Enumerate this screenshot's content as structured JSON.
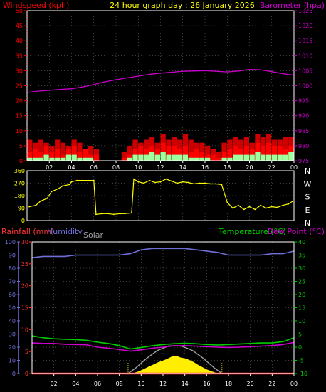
{
  "colors": {
    "windspeed": "#ff0000",
    "gust": "#cc0000",
    "wind_avg": "#9dff9d",
    "barometer": "#cc00cc",
    "direction": "#ffff00",
    "rainfall": "#ff3333",
    "humidity": "#6f6fd8",
    "solar": "#a0a0a0",
    "solar_fill": "#ffee00",
    "temperature": "#00cc00",
    "dew_point": "#cc00cc",
    "text": "#ffff00",
    "grid": "#ffffff",
    "frame": "#ffffff",
    "x_ticks": "#ffffff"
  },
  "chart_data": [
    {
      "type": "line",
      "panel": "wind-barometer",
      "title": "24 hour graph day : 26 January 2026",
      "y_left_label": "Windspeed (kph)",
      "y_right_label": "Barometer (hpa)",
      "x_ticks": [
        "02",
        "04",
        "06",
        "08",
        "10",
        "12",
        "14",
        "16",
        "18",
        "20",
        "22",
        "00"
      ],
      "y_left_ticks": [
        "0",
        "5",
        "10",
        "15",
        "20",
        "25",
        "30",
        "35",
        "40",
        "45",
        "50"
      ],
      "y_right_ticks": [
        "975",
        "980",
        "985",
        "990",
        "995",
        "1000",
        "1005",
        "1010",
        "1015",
        "1020",
        "1025"
      ],
      "y_left_lim": [
        0,
        50
      ],
      "y_right_lim": [
        975,
        1025
      ],
      "grid": true,
      "series": [
        {
          "key": "barometer",
          "axis": "right",
          "x": [
            0,
            1,
            2,
            3,
            4,
            5,
            6,
            7,
            8,
            9,
            10,
            11,
            12,
            13,
            14,
            15,
            16,
            17,
            18,
            19,
            20,
            21,
            22,
            23,
            24
          ],
          "y": [
            997.8,
            998.2,
            998.5,
            998.8,
            999.0,
            999.6,
            1000.4,
            1001.3,
            1002.0,
            1002.6,
            1003.2,
            1003.8,
            1004.2,
            1004.5,
            1004.8,
            1004.9,
            1005.0,
            1004.8,
            1004.6,
            1004.9,
            1005.4,
            1005.3,
            1004.7,
            1004.0,
            1003.5
          ]
        },
        {
          "key": "windspeed",
          "axis": "left",
          "x": [
            0.5,
            1.0,
            1.5,
            2.0,
            2.5,
            3.0,
            3.5,
            4.0,
            4.5,
            5.0,
            5.5,
            6.0,
            6.5,
            7.0,
            7.5,
            8.0,
            8.5,
            9.0,
            9.5,
            10.0,
            10.5,
            11.0,
            11.5,
            12.0,
            12.5,
            13.0,
            13.5,
            14.0,
            14.5,
            15.0,
            15.5,
            16.0,
            16.5,
            17.0,
            17.5,
            18.0,
            18.5,
            19.0,
            19.5,
            20.0,
            20.5,
            21.0,
            21.5,
            22.0,
            22.5,
            23.0,
            23.5,
            24.0
          ],
          "y": [
            3,
            4,
            3,
            5,
            3,
            4,
            2,
            4,
            5,
            3,
            4,
            2,
            2,
            0,
            0,
            0,
            0,
            1,
            2,
            4,
            5,
            4,
            5,
            4,
            6,
            5,
            5,
            4,
            5,
            3,
            4,
            3,
            2,
            2,
            1,
            3,
            4,
            5,
            4,
            5,
            4,
            6,
            5,
            6,
            5,
            5,
            4,
            5
          ]
        },
        {
          "key": "gust",
          "axis": "left",
          "x": [
            0.5,
            1.0,
            1.5,
            2.0,
            2.5,
            3.0,
            3.5,
            4.0,
            4.5,
            5.0,
            5.5,
            6.0,
            6.5,
            7.0,
            7.5,
            8.0,
            8.5,
            9.0,
            9.5,
            10.0,
            10.5,
            11.0,
            11.5,
            12.0,
            12.5,
            13.0,
            13.5,
            14.0,
            14.5,
            15.0,
            15.5,
            16.0,
            16.5,
            17.0,
            17.5,
            18.0,
            18.5,
            19.0,
            19.5,
            20.0,
            20.5,
            21.0,
            21.5,
            22.0,
            22.5,
            23.0,
            23.5,
            24.0
          ],
          "y": [
            7,
            6,
            7,
            6,
            5,
            7,
            6,
            5,
            7,
            6,
            4,
            5,
            4,
            0,
            0,
            0,
            0,
            3,
            5,
            7,
            6,
            7,
            8,
            6,
            9,
            7,
            8,
            7,
            9,
            7,
            6,
            6,
            5,
            4,
            3,
            6,
            7,
            8,
            7,
            8,
            6,
            9,
            8,
            9,
            7,
            7,
            8,
            8
          ]
        },
        {
          "key": "wind_avg",
          "axis": "left",
          "x": [
            0.5,
            1.0,
            1.5,
            2.0,
            2.5,
            3.0,
            3.5,
            4.0,
            4.5,
            5.0,
            5.5,
            6.0,
            6.5,
            7.0,
            7.5,
            8.0,
            8.5,
            9.0,
            9.5,
            10.0,
            10.5,
            11.0,
            11.5,
            12.0,
            12.5,
            13.0,
            13.5,
            14.0,
            14.5,
            15.0,
            15.5,
            16.0,
            16.5,
            17.0,
            17.5,
            18.0,
            18.5,
            19.0,
            19.5,
            20.0,
            20.5,
            21.0,
            21.5,
            22.0,
            22.5,
            23.0,
            23.5,
            24.0
          ],
          "y": [
            1,
            1,
            1,
            2,
            1,
            1,
            1,
            2,
            2,
            1,
            1,
            1,
            0,
            0,
            0,
            0,
            0,
            0,
            1,
            2,
            2,
            2,
            3,
            2,
            3,
            2,
            2,
            2,
            2,
            1,
            1,
            1,
            1,
            0,
            0,
            1,
            1,
            2,
            2,
            2,
            2,
            3,
            2,
            2,
            2,
            2,
            2,
            3
          ]
        }
      ]
    },
    {
      "type": "scatter",
      "panel": "wind-direction",
      "x_ticks": [
        "02",
        "04",
        "06",
        "08",
        "10",
        "12",
        "14",
        "16",
        "18",
        "20",
        "22",
        "00"
      ],
      "y_ticks": [
        "0",
        "90",
        "180",
        "270",
        "360"
      ],
      "compass_labels": [
        "N",
        "W",
        "S",
        "E",
        "N"
      ],
      "ylim": [
        0,
        360
      ],
      "grid": true,
      "series": [
        {
          "key": "direction",
          "x": [
            0.2,
            0.8,
            1.2,
            1.8,
            2.2,
            2.8,
            3.2,
            3.8,
            4.0,
            4.5,
            5.0,
            5.5,
            6.0,
            6.2,
            6.8,
            7.2,
            7.8,
            8.4,
            8.8,
            9.4,
            9.6,
            10.0,
            10.5,
            11.0,
            11.5,
            12.0,
            12.5,
            13.0,
            13.5,
            14.0,
            14.5,
            15.0,
            15.5,
            16.0,
            16.5,
            17.0,
            17.5,
            18.0,
            18.5,
            19.0,
            19.5,
            20.0,
            20.5,
            21.0,
            21.5,
            22.0,
            22.5,
            23.0,
            23.5,
            23.9
          ],
          "y": [
            100,
            110,
            140,
            160,
            210,
            230,
            250,
            260,
            280,
            290,
            290,
            290,
            290,
            45,
            50,
            50,
            45,
            50,
            50,
            55,
            300,
            280,
            270,
            290,
            275,
            280,
            300,
            285,
            270,
            280,
            275,
            265,
            270,
            270,
            265,
            265,
            260,
            130,
            90,
            110,
            80,
            100,
            80,
            110,
            90,
            100,
            95,
            110,
            120,
            140
          ]
        }
      ]
    },
    {
      "type": "line",
      "panel": "rain-humidity-solar-temp",
      "y_labels": {
        "rainfall": "Rainfall (mm)",
        "humidity": "Humidity",
        "solar": "Solar",
        "temperature": "Temperature (°C)",
        "dew_point": "Dew Point (°C)"
      },
      "x_ticks": [
        "02",
        "04",
        "06",
        "08",
        "10",
        "12",
        "14",
        "16",
        "18",
        "20",
        "22",
        "00"
      ],
      "humidity_ticks": [
        "0",
        "10",
        "20",
        "30",
        "40",
        "50",
        "60",
        "70",
        "80",
        "90",
        "100"
      ],
      "rain_ticks": [
        "0",
        "5",
        "10",
        "15",
        "20",
        "25",
        "30"
      ],
      "temp_ticks": [
        "-10",
        "-5",
        "0",
        "5",
        "10",
        "15",
        "20",
        "25",
        "30",
        "35",
        "40"
      ],
      "humidity_lim": [
        0,
        100
      ],
      "rain_lim": [
        0,
        30
      ],
      "temp_lim": [
        -10,
        40
      ],
      "grid": true,
      "sunrise_hour": 8.8,
      "sunset_hour": 17.4,
      "series": [
        {
          "key": "humidity",
          "x": [
            0,
            1,
            2,
            3,
            4,
            5,
            6,
            7,
            8,
            9,
            10,
            11,
            12,
            13,
            14,
            15,
            16,
            17,
            18,
            19,
            20,
            21,
            22,
            23,
            24
          ],
          "y": [
            88,
            89,
            89,
            89,
            90,
            90,
            90,
            90,
            90,
            91,
            94,
            95,
            95,
            95,
            95,
            94,
            93,
            92,
            90,
            90,
            90,
            90,
            91,
            91,
            93
          ]
        },
        {
          "key": "temperature",
          "x": [
            0,
            1,
            2,
            3,
            4,
            5,
            6,
            7,
            8,
            9,
            10,
            11,
            12,
            13,
            14,
            15,
            16,
            17,
            18,
            19,
            20,
            21,
            22,
            23,
            24
          ],
          "y": [
            4.3,
            3.6,
            3.2,
            3.0,
            2.9,
            2.6,
            1.9,
            1.4,
            0.6,
            -0.7,
            -0.1,
            0.5,
            1.0,
            1.3,
            1.5,
            1.3,
            1.0,
            0.8,
            1.0,
            1.2,
            1.4,
            1.6,
            1.6,
            2.1,
            3.6
          ]
        },
        {
          "key": "dew_point",
          "x": [
            0,
            1,
            2,
            3,
            4,
            5,
            6,
            7,
            8,
            9,
            10,
            11,
            12,
            13,
            14,
            15,
            16,
            17,
            18,
            19,
            20,
            21,
            22,
            23,
            24
          ],
          "y": [
            1.6,
            1.4,
            1.4,
            1.1,
            1.0,
            0.9,
            0.0,
            -0.4,
            -0.9,
            -1.5,
            -1.0,
            -0.4,
            0.0,
            0.5,
            0.6,
            0.4,
            0.2,
            0.0,
            -0.1,
            0.0,
            0.2,
            0.4,
            0.6,
            1.0,
            1.8
          ]
        },
        {
          "key": "solar_theoretical",
          "x": [
            8.8,
            9.5,
            10.5,
            11.5,
            12.5,
            13.1,
            13.7,
            14.7,
            15.7,
            16.7,
            17.4
          ],
          "y": [
            0,
            4.2,
            11.5,
            17.5,
            20.8,
            21.2,
            20.8,
            17.5,
            11.5,
            4.2,
            0
          ]
        },
        {
          "key": "solar",
          "x": [
            9.2,
            9.8,
            10.3,
            10.8,
            11.2,
            11.6,
            12.0,
            12.4,
            12.8,
            13.2,
            13.6,
            14.0,
            14.4,
            14.8,
            15.2,
            15.6,
            16.0,
            16.5,
            17.0
          ],
          "y": [
            0,
            1.5,
            3.4,
            5.5,
            6.9,
            8.6,
            9.6,
            11.0,
            12.7,
            13.4,
            12.0,
            11.4,
            10.2,
            8.6,
            6.5,
            4.7,
            3.0,
            1.4,
            0
          ]
        },
        {
          "key": "rainfall",
          "x": [
            0,
            24
          ],
          "y": [
            0,
            0
          ]
        }
      ]
    }
  ]
}
